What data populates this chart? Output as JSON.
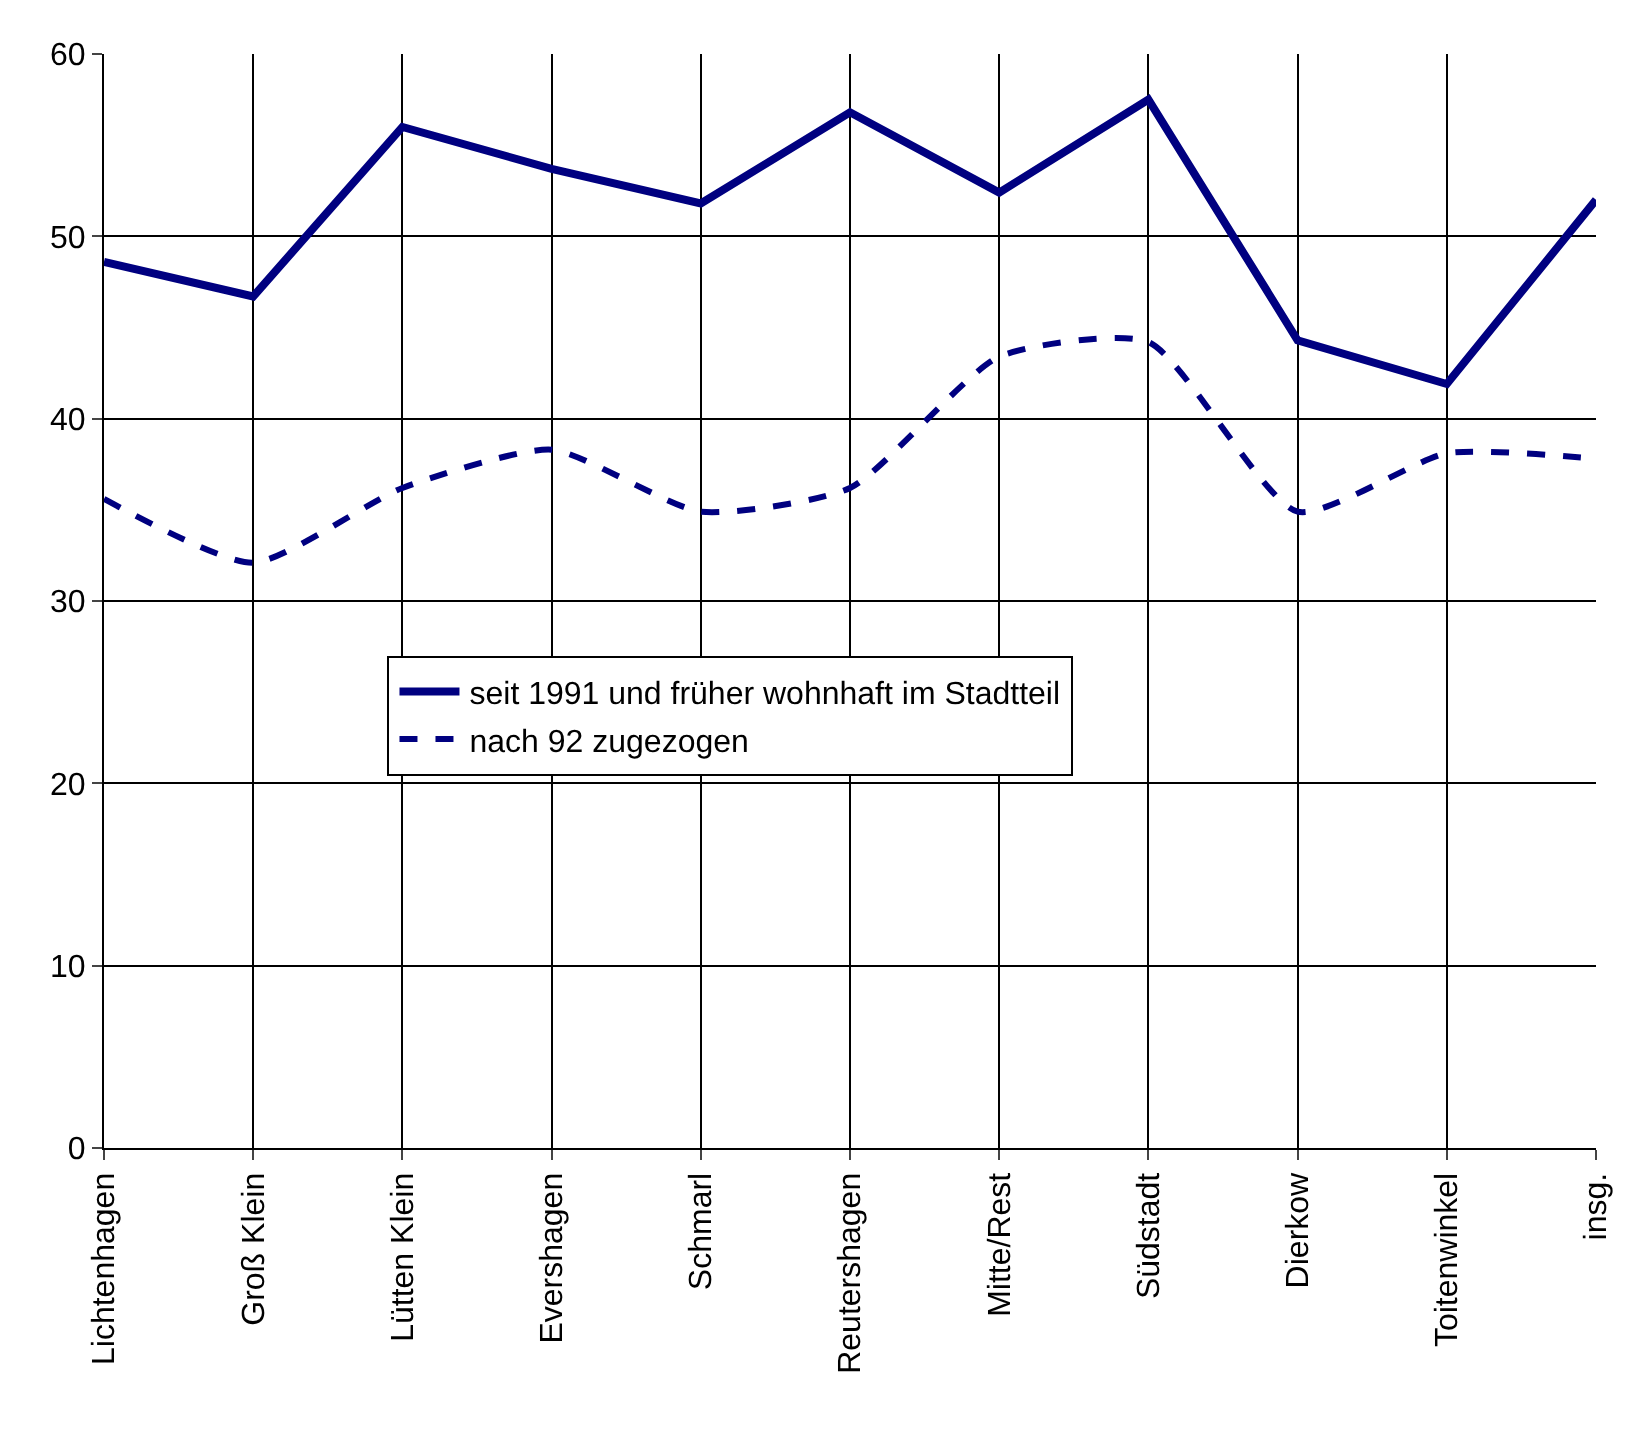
{
  "chart_data": {
    "type": "line",
    "categories": [
      "Lichtenhagen",
      "Groß Klein",
      "Lütten Klein",
      "Evershagen",
      "Schmarl",
      "Reutershagen",
      "Mitte/Rest",
      "Südstadt",
      "Dierkow",
      "Toitenwinkel",
      "insg."
    ],
    "series": [
      {
        "name": "seit 1991 und früher wohnhaft im Stadtteil",
        "color": "#000080",
        "line_style": "solid",
        "values": [
          48.6,
          46.7,
          56.0,
          53.7,
          51.8,
          56.8,
          52.4,
          57.5,
          44.3,
          41.9,
          52.0
        ]
      },
      {
        "name": "nach 92 zugezogen",
        "color": "#000080",
        "line_style": "dashed",
        "values": [
          35.6,
          32.1,
          36.2,
          38.3,
          34.9,
          36.2,
          43.4,
          44.2,
          34.9,
          38.1,
          37.8
        ]
      }
    ],
    "ylim": [
      0,
      60
    ],
    "yticks": [
      0,
      10,
      20,
      30,
      40,
      50,
      60
    ],
    "grid": true,
    "legend": "center",
    "marker": "none"
  }
}
